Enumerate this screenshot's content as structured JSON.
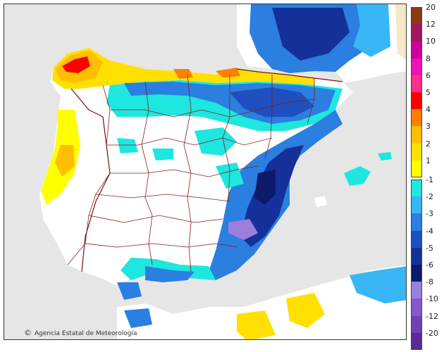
{
  "credit": {
    "copyright_symbol": "©",
    "text": "Agencia Estatal de Meteorología"
  },
  "legend": {
    "warm": [
      {
        "label": "20",
        "color": "#8b3a0f"
      },
      {
        "label": "12",
        "color": "#a0165e"
      },
      {
        "label": "10",
        "color": "#cc0099"
      },
      {
        "label": "8",
        "color": "#ee11bb"
      },
      {
        "label": "6",
        "color": "#ff2e88"
      },
      {
        "label": "5",
        "color": "#ff0000"
      },
      {
        "label": "4",
        "color": "#ff7f00"
      },
      {
        "label": "3",
        "color": "#ffbf00"
      },
      {
        "label": "2",
        "color": "#ffe000"
      },
      {
        "label": "1",
        "color": "#ffff00"
      }
    ],
    "cold": [
      {
        "label": "-1",
        "color": "#1de7df"
      },
      {
        "label": "-2",
        "color": "#38b6f5"
      },
      {
        "label": "-3",
        "color": "#2a7fe0"
      },
      {
        "label": "-4",
        "color": "#1f4fbf"
      },
      {
        "label": "-5",
        "color": "#16309a"
      },
      {
        "label": "-6",
        "color": "#0b1a6b"
      },
      {
        "label": "-8",
        "color": "#9b7fdb"
      },
      {
        "label": "-10",
        "color": "#8559c9"
      },
      {
        "label": "-12",
        "color": "#7040b4"
      },
      {
        "label": "-20",
        "color": "#5a2a96"
      }
    ]
  },
  "colors": {
    "sea": "#e6e6e6",
    "land_neutral": "#ffffff",
    "borders": "#8b1a1a"
  }
}
